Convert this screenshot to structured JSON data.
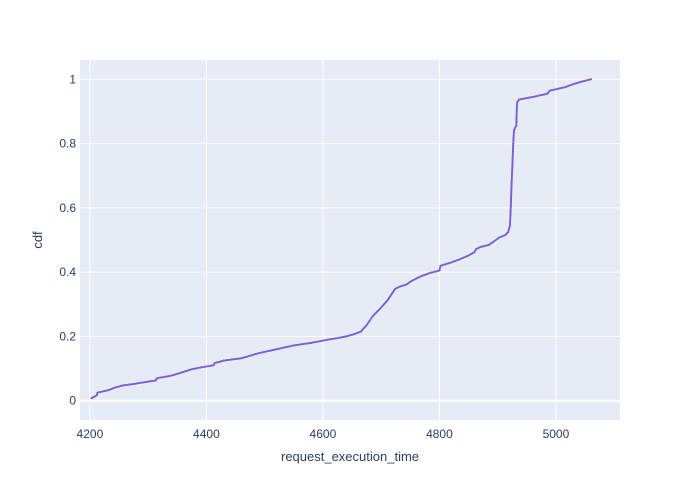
{
  "chart_data": {
    "type": "line",
    "title": "",
    "xlabel": "request_execution_time",
    "ylabel": "cdf",
    "xlim": [
      4183,
      5110
    ],
    "ylim": [
      -0.06,
      1.06
    ],
    "x_ticks": [
      4200,
      4400,
      4600,
      4800,
      5000
    ],
    "y_ticks": [
      0,
      0.2,
      0.4,
      0.6,
      0.8,
      1
    ],
    "grid": true,
    "legend": "none",
    "colors": {
      "plot_background": "#e5ecf6",
      "grid": "#ffffff",
      "line": "#636efa",
      "markers": "#c2185b",
      "text": "#2a3f5f"
    },
    "series": [
      {
        "x": [
          4203,
          4212,
          4213,
          4230,
          4245,
          4258,
          4275,
          4295,
          4313,
          4315,
          4340,
          4358,
          4375,
          4395,
          4412,
          4414,
          4430,
          4460,
          4475,
          4490,
          4520,
          4550,
          4580,
          4600,
          4625,
          4640,
          4655,
          4665,
          4670,
          4675,
          4680,
          4685,
          4692,
          4700,
          4705,
          4712,
          4718,
          4724,
          4732,
          4744,
          4750,
          4758,
          4772,
          4785,
          4800,
          4802,
          4820,
          4835,
          4850,
          4860,
          4863,
          4870,
          4885,
          4893,
          4903,
          4913,
          4918,
          4921,
          4922,
          4923,
          4924,
          4925,
          4926,
          4927,
          4928,
          4929,
          4930,
          4932,
          4933,
          4934,
          4937,
          4960,
          4985,
          4990,
          5015,
          5030,
          5045,
          5060
        ],
        "y": [
          0.008,
          0.017,
          0.025,
          0.032,
          0.042,
          0.048,
          0.052,
          0.058,
          0.063,
          0.07,
          0.078,
          0.088,
          0.098,
          0.105,
          0.11,
          0.117,
          0.125,
          0.132,
          0.14,
          0.148,
          0.16,
          0.172,
          0.18,
          0.187,
          0.195,
          0.2,
          0.208,
          0.215,
          0.225,
          0.235,
          0.248,
          0.262,
          0.275,
          0.29,
          0.3,
          0.315,
          0.332,
          0.348,
          0.355,
          0.362,
          0.37,
          0.378,
          0.39,
          0.398,
          0.405,
          0.42,
          0.43,
          0.44,
          0.452,
          0.462,
          0.472,
          0.478,
          0.485,
          0.495,
          0.508,
          0.515,
          0.525,
          0.545,
          0.58,
          0.63,
          0.68,
          0.72,
          0.77,
          0.81,
          0.84,
          0.845,
          0.85,
          0.855,
          0.92,
          0.93,
          0.937,
          0.945,
          0.955,
          0.965,
          0.975,
          0.985,
          0.993,
          1.0
        ]
      }
    ]
  }
}
